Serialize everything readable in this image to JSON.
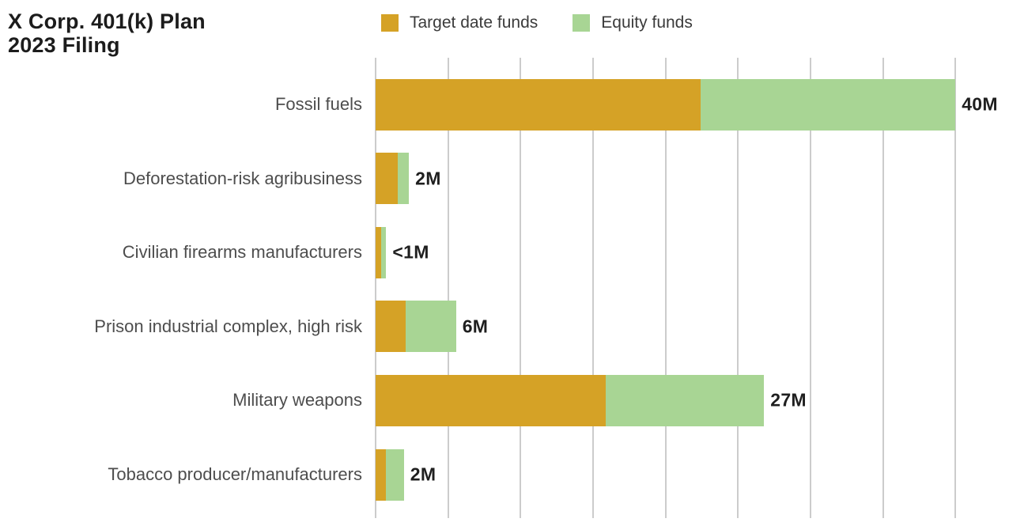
{
  "header": {
    "title_line1": "X Corp. 401(k) Plan",
    "title_line2": "2023 Filing"
  },
  "chart_data": {
    "type": "bar",
    "orientation": "horizontal",
    "stacked": true,
    "title": "X Corp. 401(k) Plan 2023 Filing",
    "legend_position": "top",
    "grid": true,
    "categories": [
      "Fossil fuels",
      "Deforestation-risk agribusiness",
      "Civilian firearms manufacturers",
      "Prison industrial complex, high risk",
      "Military weapons",
      "Tobacco producer/manufacturers"
    ],
    "series": [
      {
        "name": "Target date funds",
        "color": "#D5A226",
        "values": [
          22.4,
          1.55,
          0.4,
          2.05,
          15.9,
          0.73
        ]
      },
      {
        "name": "Equity funds",
        "color": "#A8D594",
        "values": [
          17.6,
          0.75,
          0.33,
          3.5,
          10.9,
          1.22
        ]
      }
    ],
    "total_labels": [
      "40M",
      "2M",
      "<1M",
      "6M",
      "27M",
      "2M"
    ],
    "unit": "M",
    "x_axis": {
      "min": 0,
      "max": 40,
      "tick_step": 5,
      "tick_labels_visible": false
    }
  },
  "colors": {
    "background": "#FFFFFF",
    "gridline": "#CCCCCC",
    "title_text": "#1C1C1C",
    "category_text": "#4D4D4D",
    "value_text": "#1F1F1F"
  }
}
